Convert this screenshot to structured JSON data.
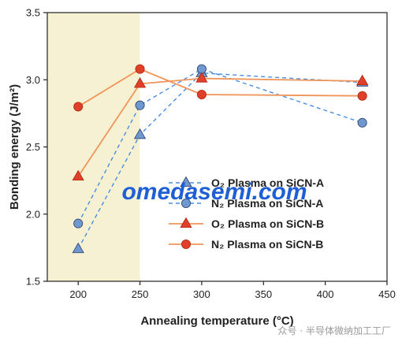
{
  "chart_data": {
    "type": "line",
    "title": "",
    "xlabel": "Annealing temperature (°C)",
    "ylabel": "Bonding energy (J/m²)",
    "xlim": [
      175,
      450
    ],
    "ylim": [
      1.5,
      3.5
    ],
    "xticks": [
      "200",
      "250",
      "300",
      "350",
      "400",
      "450"
    ],
    "yticks": [
      "1.5",
      "2.0",
      "2.5",
      "3.0",
      "3.5"
    ],
    "highlight_region": {
      "x": [
        175,
        250
      ],
      "color": "#f5f1d2"
    },
    "legend_position": "bottom-center",
    "series": [
      {
        "name": "O₂ Plasma on SiCN-A",
        "marker": "triangle",
        "line": "dashed",
        "color": "#2e74c8",
        "x": [
          200,
          250,
          300,
          430
        ],
        "y": [
          1.74,
          2.59,
          3.05,
          2.98
        ]
      },
      {
        "name": "N₂ Plasma on SiCN-A",
        "marker": "circle",
        "line": "dashed",
        "color": "#2e74c8",
        "x": [
          200,
          250,
          300,
          430
        ],
        "y": [
          1.93,
          2.81,
          3.08,
          2.68
        ]
      },
      {
        "name": "O₂ Plasma on SiCN-B",
        "marker": "triangle",
        "line": "solid",
        "color": "#e0402a",
        "x": [
          200,
          250,
          300,
          430
        ],
        "y": [
          2.28,
          2.97,
          3.01,
          2.99
        ]
      },
      {
        "name": "N₂ Plasma on SiCN-B",
        "marker": "circle",
        "line": "solid",
        "color": "#e0402a",
        "x": [
          200,
          250,
          300,
          430
        ],
        "y": [
          2.8,
          3.08,
          2.89,
          2.88
        ]
      }
    ]
  },
  "overlay": {
    "watermark": "omedasemi.com",
    "footer_mark": "众号 · 半导体微纳加工工厂"
  },
  "style": {
    "line_blue": "#4a8fe0",
    "line_orange": "#f0955a",
    "marker_blue": "#6f98d0",
    "marker_red": "#e0402a",
    "marker_edge": "#2a3f66"
  }
}
